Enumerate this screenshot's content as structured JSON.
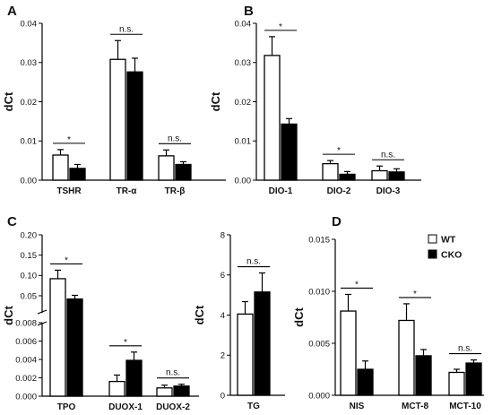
{
  "legend": {
    "wt_label": "WT",
    "cko_label": "CKO",
    "wt_color": "#ffffff",
    "cko_color": "#000000"
  },
  "chart_data": [
    {
      "id": "A",
      "type": "bar",
      "panel_label": "A",
      "ylabel": "dCt",
      "ylim": [
        0,
        0.04
      ],
      "yticks": [
        "0.00",
        "0.01",
        "0.02",
        "0.03",
        "0.04"
      ],
      "categories": [
        "TSHR",
        "TR-α",
        "TR-β"
      ],
      "series": [
        {
          "name": "WT",
          "values": [
            0.0064,
            0.0308,
            0.0062
          ],
          "errors": [
            0.0014,
            0.0048,
            0.0015
          ]
        },
        {
          "name": "CKO",
          "values": [
            0.003,
            0.0276,
            0.004
          ],
          "errors": [
            0.001,
            0.0035,
            0.0007
          ]
        }
      ],
      "significance": [
        "*",
        "n.s.",
        "n.s."
      ]
    },
    {
      "id": "B",
      "type": "bar",
      "panel_label": "B",
      "ylabel": "dCt",
      "ylim": [
        0,
        0.04
      ],
      "yticks": [
        "0.00",
        "0.01",
        "0.02",
        "0.03",
        "0.04"
      ],
      "categories": [
        "DIO-1",
        "DIO-2",
        "DIO-3"
      ],
      "series": [
        {
          "name": "WT",
          "values": [
            0.0318,
            0.0042,
            0.0024
          ],
          "errors": [
            0.0048,
            0.0008,
            0.0012
          ]
        },
        {
          "name": "CKO",
          "values": [
            0.0143,
            0.0015,
            0.0021
          ],
          "errors": [
            0.0014,
            0.0007,
            0.0008
          ]
        }
      ],
      "significance": [
        "*",
        "*",
        "n.s."
      ]
    },
    {
      "id": "C",
      "type": "bar",
      "panel_label": "C",
      "ylabel": "dCt",
      "axis_break": true,
      "lower_ylim": [
        0,
        0.008
      ],
      "upper_ylim": [
        0.008,
        0.2
      ],
      "lower_yticks": [
        "0.000",
        "0.002",
        "0.004",
        "0.006",
        "0.008"
      ],
      "upper_yticks": [
        "0.05",
        "0.10",
        "0.15",
        "0.20"
      ],
      "categories": [
        "TPO",
        "DUOX-1",
        "DUOX-2"
      ],
      "series": [
        {
          "name": "WT",
          "values": [
            0.092,
            0.0016,
            0.0009
          ],
          "errors": [
            0.021,
            0.0007,
            0.0003
          ]
        },
        {
          "name": "CKO",
          "values": [
            0.042,
            0.0039,
            0.0011
          ],
          "errors": [
            0.009,
            0.0009,
            0.0002
          ]
        }
      ],
      "significance": [
        "*",
        "*",
        "n.s."
      ]
    },
    {
      "id": "TG",
      "type": "bar",
      "panel_label": "",
      "ylabel": "dCt",
      "ylim": [
        0,
        8
      ],
      "yticks": [
        "0",
        "2",
        "4",
        "6",
        "8"
      ],
      "categories": [
        "TG"
      ],
      "series": [
        {
          "name": "WT",
          "values": [
            4.05
          ],
          "errors": [
            0.62
          ]
        },
        {
          "name": "CKO",
          "values": [
            5.15
          ],
          "errors": [
            0.95
          ]
        }
      ],
      "significance": [
        "n.s."
      ]
    },
    {
      "id": "D",
      "type": "bar",
      "panel_label": "D",
      "ylabel": "dCt",
      "ylim": [
        0,
        0.015
      ],
      "yticks": [
        "0.000",
        "0.005",
        "0.010",
        "0.015"
      ],
      "categories": [
        "NIS",
        "MCT-8",
        "MCT-10"
      ],
      "series": [
        {
          "name": "WT",
          "values": [
            0.0081,
            0.0072,
            0.0022
          ],
          "errors": [
            0.0016,
            0.0016,
            0.0003
          ]
        },
        {
          "name": "CKO",
          "values": [
            0.0025,
            0.0038,
            0.0031
          ],
          "errors": [
            0.0008,
            0.0006,
            0.0003
          ]
        }
      ],
      "significance": [
        "*",
        "*",
        "n.s."
      ]
    }
  ]
}
